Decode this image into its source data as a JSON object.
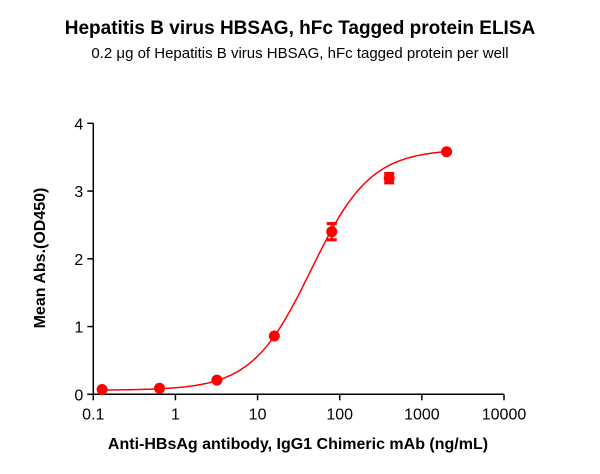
{
  "chart_data": {
    "type": "scatter",
    "title": "Hepatitis B virus HBSAG, hFc Tagged protein ELISA",
    "subtitle": "0.2 μg of Hepatitis B virus HBSAG, hFc tagged protein per well",
    "xlabel": "Anti-HBsAg antibody, IgG1 Chimeric mAb  (ng/mL)",
    "ylabel": "Mean Abs.(OD450)",
    "xscale": "log",
    "xlim": [
      0.1,
      10000
    ],
    "ylim": [
      0,
      4
    ],
    "xticks": [
      "0.1",
      "1",
      "10",
      "100",
      "1000",
      "10000"
    ],
    "yticks": [
      "0",
      "1",
      "2",
      "3",
      "4"
    ],
    "grid": false,
    "color": "#ff0000",
    "series": [
      {
        "name": "Anti-HBsAg antibody",
        "x": [
          0.128,
          0.64,
          3.2,
          16,
          80,
          400,
          2000
        ],
        "y": [
          0.07,
          0.09,
          0.21,
          0.86,
          2.4,
          3.19,
          3.58
        ],
        "error": [
          0.01,
          0.01,
          0.01,
          0.02,
          0.12,
          0.07,
          0.02
        ]
      }
    ],
    "fit": {
      "model": "4PL",
      "bottom": 0.06,
      "top": 3.62,
      "ec50": 45,
      "hill": 1.2
    }
  }
}
